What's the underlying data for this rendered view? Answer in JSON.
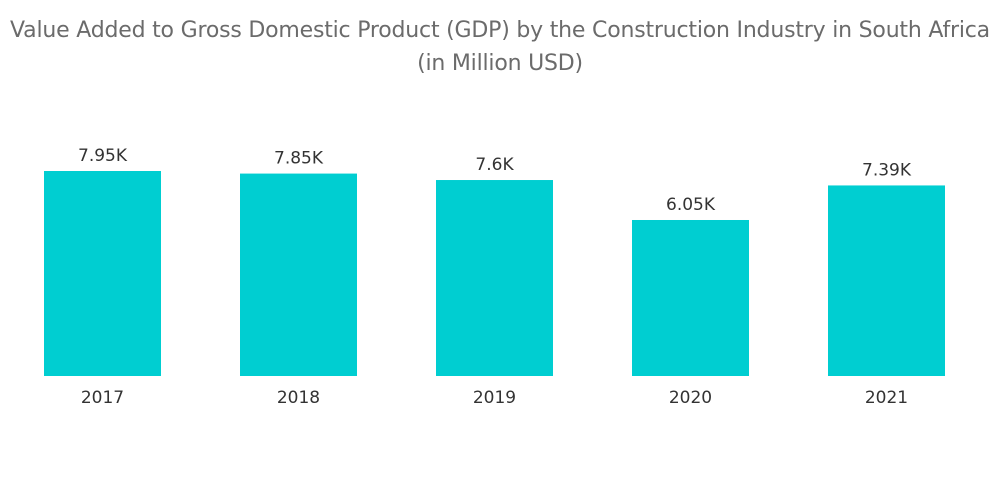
{
  "title_line1": "Value Added to Gross Domestic Product (GDP) by the Construction Industry in South Africa",
  "title_line2": "(in Million USD)",
  "chart_data": {
    "type": "bar",
    "title": "Value Added to Gross Domestic Product (GDP) by the Construction Industry in South Africa (in Million USD)",
    "categories": [
      "2017",
      "2018",
      "2019",
      "2020",
      "2021"
    ],
    "values": [
      7950,
      7850,
      7600,
      6050,
      7390
    ],
    "data_labels": [
      "7.95K",
      "7.85K",
      "7.6K",
      "6.05K",
      "7.39K"
    ],
    "xlabel": "",
    "ylabel": "",
    "ylim": [
      0,
      7950
    ],
    "grid": false,
    "legend": "none",
    "bar_color": "#00ced1"
  }
}
